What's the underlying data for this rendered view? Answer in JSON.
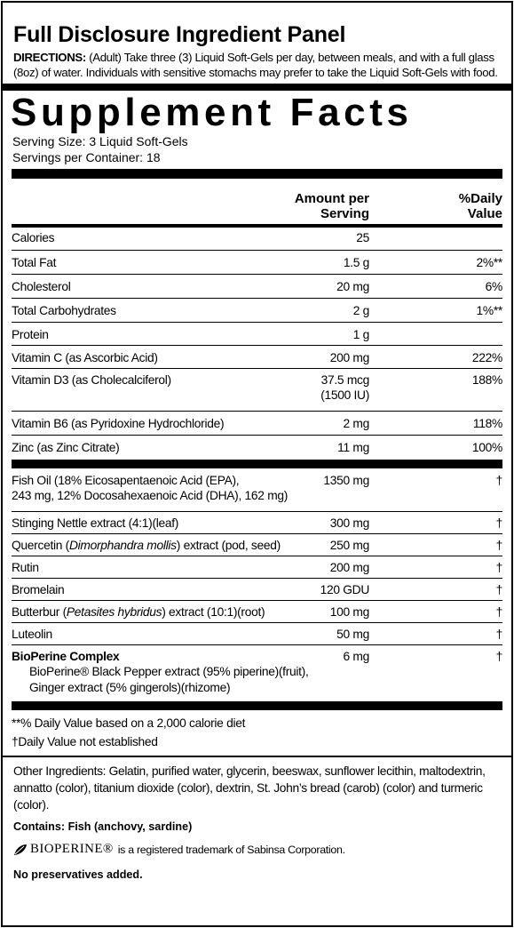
{
  "header": {
    "title": "Full Disclosure Ingredient Panel",
    "directions_label": "DIRECTIONS:",
    "directions_text": "(Adult) Take three (3) Liquid Soft-Gels per day, between meals, and with a full glass (8oz) of water. Individuals with sensitive stomachs may prefer to take the Liquid Soft-Gels with food."
  },
  "facts": {
    "title": "Supplement Facts",
    "serving_size": "Serving Size:  3 Liquid Soft-Gels",
    "servings_per_container": "Servings per Container:  18",
    "col_amount_1": "Amount per",
    "col_amount_2": "Serving",
    "col_dv_1": "%Daily",
    "col_dv_2": "Value"
  },
  "nutrients": [
    {
      "name": "Calories",
      "amount": "25",
      "dv": ""
    },
    {
      "name": "Total Fat",
      "amount": "1.5 g",
      "dv": "2%**"
    },
    {
      "name": "Cholesterol",
      "amount": "20 mg",
      "dv": "6%"
    },
    {
      "name": "Total Carbohydrates",
      "amount": "2 g",
      "dv": "1%**"
    },
    {
      "name": "Protein",
      "amount": "1 g",
      "dv": ""
    },
    {
      "name": "Vitamin C (as Ascorbic Acid)",
      "amount": "200 mg",
      "dv": "222%"
    },
    {
      "name": "Vitamin D3 (as Cholecalciferol)",
      "amount": "37.5 mcg",
      "amount2": "(1500 IU)",
      "dv": "188%"
    },
    {
      "name": "Vitamin B6 (as Pyridoxine Hydrochloride)",
      "amount": "2 mg",
      "dv": "118%"
    },
    {
      "name": "Zinc (as Zinc Citrate)",
      "amount": "11 mg",
      "dv": "100%"
    }
  ],
  "ingredients": [
    {
      "name": "Fish Oil (18% Eicosapentaenoic Acid (EPA),",
      "name2": "243 mg, 12% Docosahexaenoic Acid (DHA), 162 mg)",
      "amount": "1350 mg",
      "dv": "†"
    },
    {
      "name": "Stinging Nettle extract (4:1)(leaf)",
      "amount": "300 mg",
      "dv": "†"
    },
    {
      "name_a": "Quercetin (",
      "name_i": "Dimorphandra mollis",
      "name_b": ") extract (pod, seed)",
      "amount": "250 mg",
      "dv": "†"
    },
    {
      "name": "Rutin",
      "amount": "200 mg",
      "dv": "†"
    },
    {
      "name": "Bromelain",
      "amount": "120 GDU",
      "dv": "†"
    },
    {
      "name_a": "Butterbur (",
      "name_i": "Petasites hybridus",
      "name_b": ") extract (10:1)(root)",
      "amount": "100 mg",
      "dv": "†"
    },
    {
      "name": "Luteolin",
      "amount": "50 mg",
      "dv": "†"
    },
    {
      "name": "BioPerine Complex",
      "sub1": "BioPerine® Black Pepper extract (95% piperine)(fruit),",
      "sub2": "Ginger extract (5% gingerols)(rhizome)",
      "amount": "6 mg",
      "dv": "†"
    }
  ],
  "footnotes": {
    "f1": "**% Daily Value based on a 2,000 calorie diet",
    "f2": "†Daily Value not established"
  },
  "other_ingredients": "Other Ingredients:  Gelatin, purified water, glycerin, beeswax, sunflower lecithin, maltodextrin, annatto (color), titanium dioxide (color), dextrin, St. John’s bread (carob) (color) and turmeric (color).",
  "contains": "Contains:  Fish (anchovy, sardine)",
  "trademark": {
    "brand": "BIOPERINE®",
    "text": "is a registered trademark of Sabinsa Corporation."
  },
  "no_preservatives": "No preservatives added."
}
